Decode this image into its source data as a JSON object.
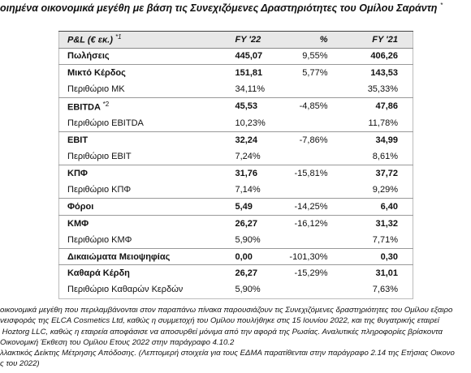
{
  "title": "οιημένα οικονομικά μεγέθη με βάση τις Συνεχιζόμενες Δραστηριότητες του Ομίλου Σαράντη",
  "title_note": "*",
  "table": {
    "header": {
      "label": "P&L (€ εκ.)",
      "note": "*1",
      "fy22": "FY '22",
      "change": "%",
      "fy21": "FY '21"
    },
    "rows": [
      {
        "label": "Πωλήσεις",
        "bold": true,
        "fy22": "445,07",
        "change": "9,55%",
        "fy21": "406,26"
      },
      {
        "label": "Μικτό Κέρδος",
        "bold": true,
        "fy22": "151,81",
        "change": "5,77%",
        "fy21": "143,53"
      },
      {
        "label": "Περιθώριο ΜΚ",
        "bold": false,
        "fy22": "34,11%",
        "fy21": "35,33%"
      },
      {
        "label": "EBITDA",
        "note": "*2",
        "bold": true,
        "fy22": "45,53",
        "change": "-4,85%",
        "fy21": "47,86"
      },
      {
        "label": "Περιθώριο EBITDA",
        "bold": false,
        "fy22": "10,23%",
        "fy21": "11,78%"
      },
      {
        "label": "EBIT",
        "bold": true,
        "fy22": "32,24",
        "change": "-7,86%",
        "fy21": "34,99"
      },
      {
        "label": "Περιθώριο EBIT",
        "bold": false,
        "fy22": "7,24%",
        "fy21": "8,61%"
      },
      {
        "label": "ΚΠΦ",
        "bold": true,
        "fy22": "31,76",
        "change": "-15,81%",
        "fy21": "37,72"
      },
      {
        "label": "Περιθώριο ΚΠΦ",
        "bold": false,
        "fy22": "7,14%",
        "fy21": "9,29%"
      },
      {
        "label": "Φόροι",
        "bold": true,
        "fy22": "5,49",
        "change": "-14,25%",
        "fy21": "6,40"
      },
      {
        "label": "ΚΜΦ",
        "bold": true,
        "fy22": "26,27",
        "change": "-16,12%",
        "fy21": "31,32"
      },
      {
        "label": "Περιθώριο ΚΜΦ",
        "bold": false,
        "fy22": "5,90%",
        "fy21": "7,71%"
      },
      {
        "label": "Δικαιώματα Μειοψηφίας",
        "bold": true,
        "fy22": "0,00",
        "change": "-101,30%",
        "fy21": "0,30"
      },
      {
        "label": "Καθαρά Κέρδη",
        "bold": true,
        "fy22": "26,27",
        "change": "-15,29%",
        "fy21": "31,01"
      },
      {
        "label": "Περιθώριο Καθαρών Κερδών",
        "bold": false,
        "fy22": "5,90%",
        "fy21": "7,63%"
      }
    ]
  },
  "footnotes": [
    "οικονομικά μεγέθη που περιλαμβάνονται στον παραπάνω πίνακα παρουσιάζουν τις Συνεχιζόμενες δραστηριότητες του Ομίλου εξαιρο",
    "νεισφοράς της ELCA Cosmetics Ltd, καθώς η συμμετοχή του Ομίλου πουλήθηκε στις 15 Ιουνίου 2022, και της θυγατρικής εταιρεί",
    " Hoztorg LLC, καθώς η εταιρεία αποφάσισε να αποσυρθεί μόνιμα από την αφορά της Ρωσίας. Αναλυτικές πληροφορίες βρίσκοντα",
    "Οικονομική Έκθεση του Ομίλου Ετους 2022 στην παράγραφο 4.10.2",
    "λλακτικός Δείκτης Μέτρησης Απόδοσης. (Λεπτομερή στοιχεία για τους ΕΔΜΑ παρατίθενται στην παράγραφο 2.14 της Ετήσιας Οικονο",
    "ς του 2022)"
  ]
}
